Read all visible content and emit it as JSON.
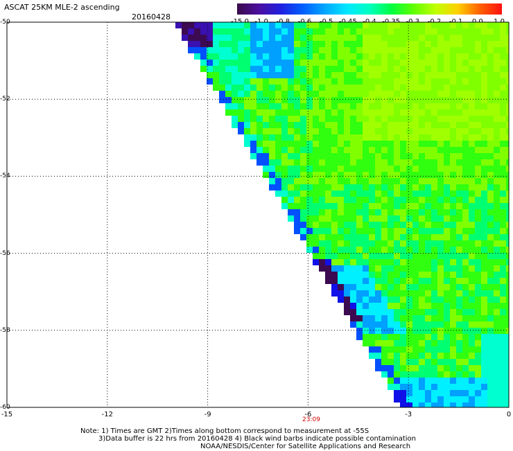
{
  "header": {
    "title": "ASCAT 25KM MLE-2 ascending",
    "date": "20160428"
  },
  "colorbar": {
    "labels": [
      "-15.0",
      "-1.0",
      "-0.8",
      "-0.6",
      "-0.5",
      "-0.45",
      "-0.4",
      "-0.35",
      "-0.3",
      "-0.2",
      "-0.1",
      "0.0",
      "1.0"
    ],
    "colors": [
      "#3a0a4a",
      "#4a10a0",
      "#2020e0",
      "#0060ff",
      "#00a8ff",
      "#00e8ff",
      "#00ffc0",
      "#00ff40",
      "#60ff00",
      "#c0ff00",
      "#ffd000",
      "#ff6000",
      "#ff1010"
    ]
  },
  "map": {
    "lat_labels": [
      "-50",
      "-52",
      "-54",
      "-56",
      "-58",
      "-60"
    ],
    "lon_labels": [
      "-15",
      "-12",
      "-9",
      "-6",
      "-3",
      "0"
    ],
    "pass_time": "23:09",
    "lon_range": [
      -15,
      0
    ],
    "lat_range": [
      -60,
      -50
    ]
  },
  "notes": {
    "line1": "Note: 1) Times are GMT 2)Times along bottom correspond to measurement at -55S",
    "line2": "3)Data buffer is 22 hrs from 20160428 4) Black wind barbs indicate possible contamination",
    "line3": "NOAA/NESDIS/Center for Satellite Applications and Research"
  }
}
